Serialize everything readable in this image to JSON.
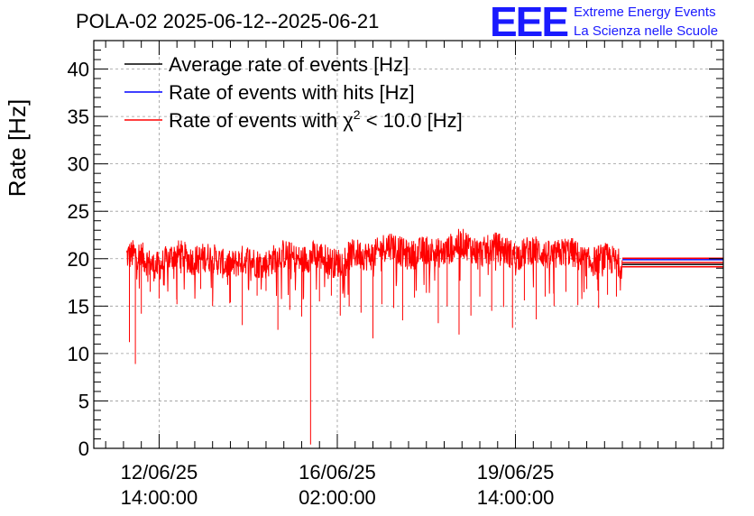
{
  "chart_data": {
    "type": "line",
    "title": "POLA-02 2025-06-12--2025-06-21",
    "ylabel": "Rate [Hz]",
    "xlabel": "",
    "ylim": [
      0,
      43
    ],
    "yticks": [
      0,
      5,
      10,
      15,
      20,
      25,
      30,
      35,
      40
    ],
    "xlim_hours": [
      0,
      212
    ],
    "xticks": [
      {
        "hours": 22,
        "date": "12/06/25",
        "time": "14:00:00"
      },
      {
        "hours": 82,
        "date": "16/06/25",
        "time": "02:00:00"
      },
      {
        "hours": 142,
        "date": "19/06/25",
        "time": "14:00:00"
      }
    ],
    "data_start_hours": 11,
    "data_end_hours": 178,
    "series": [
      {
        "name": "Average rate of events [Hz]",
        "color": "#000000",
        "value": 19.4
      },
      {
        "name": "Rate of events with hits [Hz]",
        "color": "#0000ff",
        "value": 19.9
      },
      {
        "name": "Rate of events with χ² < 10.0 [Hz]",
        "legend_prefix": "Rate of events with ",
        "legend_chi": "χ",
        "legend_sup": "2",
        "legend_suffix": " < 10.0 [Hz]",
        "color": "#ff0000",
        "value": 19.6,
        "baseline_hours": [
          11,
          20,
          30,
          40,
          50,
          60,
          70,
          80,
          90,
          100,
          110,
          120,
          130,
          140,
          150,
          160,
          170,
          178
        ],
        "baseline_values": [
          20.3,
          19.7,
          20.3,
          19.5,
          19.8,
          19.9,
          20.0,
          20.1,
          20.3,
          20.9,
          20.7,
          21.2,
          20.8,
          21.0,
          20.6,
          20.2,
          20.0,
          19.9
        ],
        "dips": [
          {
            "hours": 12,
            "value": 11.2
          },
          {
            "hours": 14,
            "value": 8.9
          },
          {
            "hours": 16,
            "value": 14.2
          },
          {
            "hours": 19,
            "value": 16.5
          },
          {
            "hours": 22,
            "value": 15.8
          },
          {
            "hours": 28,
            "value": 15.2
          },
          {
            "hours": 36,
            "value": 16.8
          },
          {
            "hours": 40,
            "value": 15.0
          },
          {
            "hours": 46,
            "value": 15.4
          },
          {
            "hours": 50,
            "value": 13.0
          },
          {
            "hours": 55,
            "value": 16.1
          },
          {
            "hours": 58,
            "value": 16.6
          },
          {
            "hours": 62,
            "value": 12.5
          },
          {
            "hours": 66,
            "value": 14.6
          },
          {
            "hours": 70,
            "value": 13.9
          },
          {
            "hours": 73,
            "value": 0.4
          },
          {
            "hours": 76,
            "value": 15.5
          },
          {
            "hours": 80,
            "value": 16.1
          },
          {
            "hours": 83,
            "value": 14.0
          },
          {
            "hours": 86,
            "value": 15.0
          },
          {
            "hours": 90,
            "value": 14.3
          },
          {
            "hours": 94,
            "value": 11.6
          },
          {
            "hours": 97,
            "value": 15.2
          },
          {
            "hours": 101,
            "value": 14.8
          },
          {
            "hours": 104,
            "value": 13.5
          },
          {
            "hours": 108,
            "value": 15.9
          },
          {
            "hours": 112,
            "value": 16.4
          },
          {
            "hours": 116,
            "value": 13.2
          },
          {
            "hours": 119,
            "value": 15.0
          },
          {
            "hours": 123,
            "value": 12.0
          },
          {
            "hours": 127,
            "value": 14.0
          },
          {
            "hours": 130,
            "value": 16.0
          },
          {
            "hours": 134,
            "value": 14.5
          },
          {
            "hours": 138,
            "value": 14.9
          },
          {
            "hours": 141,
            "value": 12.7
          },
          {
            "hours": 145,
            "value": 15.6
          },
          {
            "hours": 149,
            "value": 13.6
          },
          {
            "hours": 152,
            "value": 16.0
          },
          {
            "hours": 155,
            "value": 15.0
          },
          {
            "hours": 159,
            "value": 16.5
          },
          {
            "hours": 163,
            "value": 15.1
          },
          {
            "hours": 166,
            "value": 16.8
          },
          {
            "hours": 170,
            "value": 14.8
          },
          {
            "hours": 173,
            "value": 16.2
          },
          {
            "hours": 176,
            "value": 16.0
          }
        ]
      }
    ]
  },
  "logo": {
    "mark": "EEE",
    "line1": "Extreme Energy Events",
    "line2": "La Scienza nelle Scuole"
  }
}
